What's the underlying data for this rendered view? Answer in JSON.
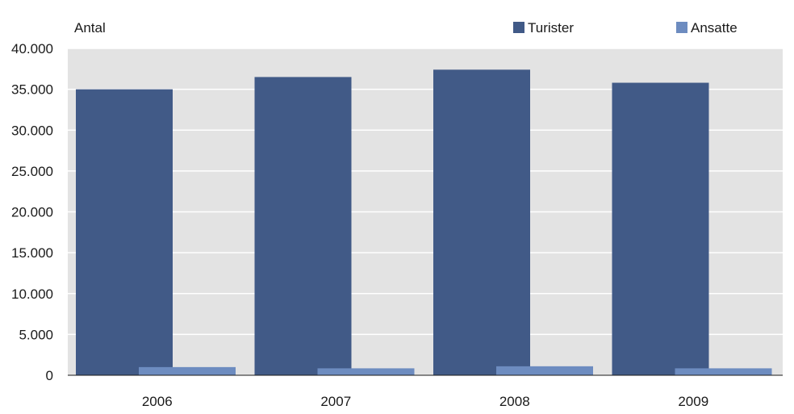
{
  "chart_data": {
    "type": "bar",
    "ylabel": "Antal",
    "categories": [
      "2006",
      "2007",
      "2008",
      "2009"
    ],
    "series": [
      {
        "name": "Turister",
        "color": "#415a87",
        "values": [
          35000,
          36500,
          37400,
          35800
        ]
      },
      {
        "name": "Ansatte",
        "color": "#6d8cc0",
        "values": [
          1000,
          850,
          1100,
          850
        ]
      }
    ],
    "ylim": [
      0,
      40000
    ],
    "yticks": [
      0,
      5000,
      10000,
      15000,
      20000,
      25000,
      30000,
      35000,
      40000
    ],
    "ytick_labels": [
      "0",
      "5.000",
      "10.000",
      "15.000",
      "20.000",
      "25.000",
      "30.000",
      "35.000",
      "40.000"
    ],
    "grid": true,
    "legend_position": "top-right",
    "plot_background": "#e3e3e3",
    "grid_color": "#ffffff"
  }
}
